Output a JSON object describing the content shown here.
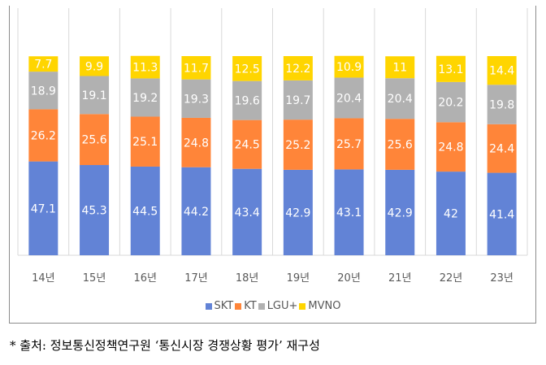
{
  "chart_data": {
    "type": "bar",
    "stacked": true,
    "categories": [
      "14년",
      "15년",
      "16년",
      "17년",
      "18년",
      "19년",
      "20년",
      "21년",
      "22년",
      "23년"
    ],
    "series": [
      {
        "name": "SKT",
        "color": "#6283d6",
        "values": [
          47.1,
          45.3,
          44.5,
          44.2,
          43.4,
          42.9,
          43.1,
          42.9,
          42,
          41.4
        ]
      },
      {
        "name": "KT",
        "color": "#ff8539",
        "values": [
          26.2,
          25.6,
          25.1,
          24.8,
          24.5,
          25.2,
          25.7,
          25.6,
          24.8,
          24.4
        ]
      },
      {
        "name": "LGU+",
        "color": "#b1b1b1",
        "values": [
          18.9,
          19.1,
          19.2,
          19.3,
          19.6,
          19.7,
          20.4,
          20.4,
          20.2,
          19.8
        ]
      },
      {
        "name": "MVNO",
        "color": "#ffd500",
        "values": [
          7.7,
          9.9,
          11.3,
          11.7,
          12.5,
          12.2,
          10.9,
          11,
          13.1,
          14.4
        ]
      }
    ],
    "ylim": [
      0,
      100
    ],
    "grid": "vertical separators",
    "legend": "bottom",
    "data_labels": true
  },
  "footnote": "* 출처: 정보통신정책연구원 ‘통신시장 경쟁상황 평가’ 재구성"
}
